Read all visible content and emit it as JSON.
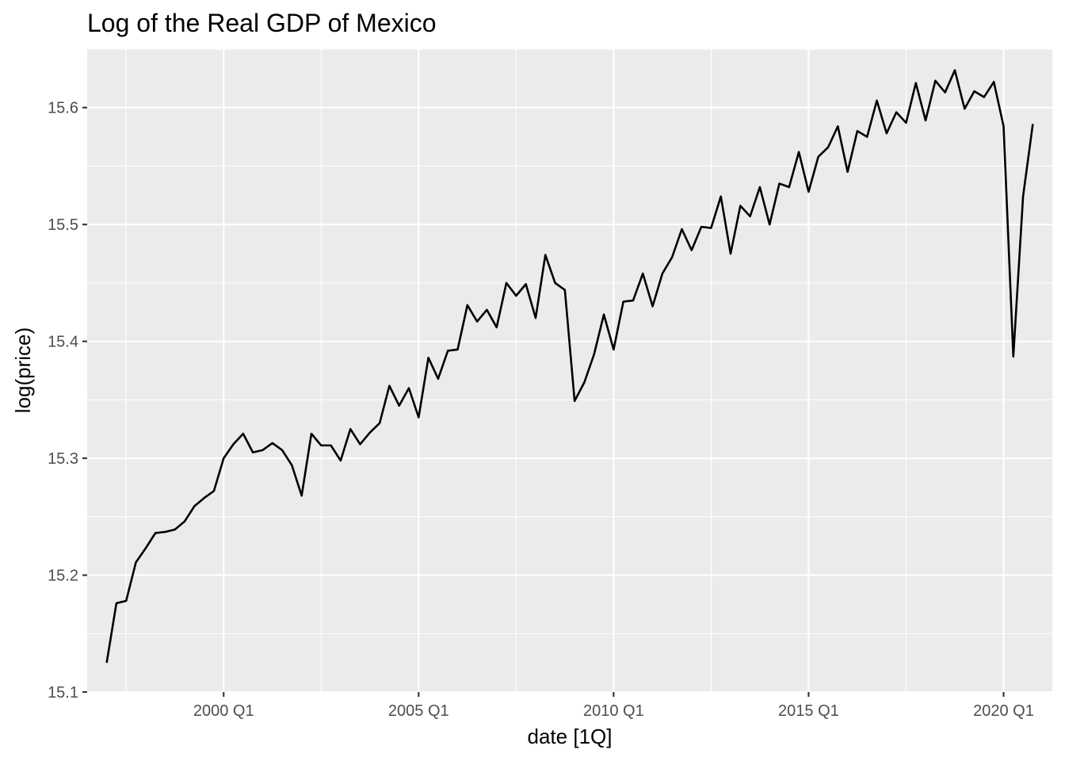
{
  "chart_data": {
    "type": "line",
    "title": "Log of the Real GDP of Mexico",
    "xlabel": "date [1Q]",
    "ylabel": "log(price)",
    "xlim": [
      "1996 Q3",
      "2021 Q2"
    ],
    "ylim": [
      15.1,
      15.65
    ],
    "y_ticks": [
      15.1,
      15.2,
      15.3,
      15.4,
      15.5,
      15.6
    ],
    "x_ticks": [
      "2000 Q1",
      "2005 Q1",
      "2010 Q1",
      "2015 Q1",
      "2020 Q1"
    ],
    "grid": true,
    "legend": "none",
    "background": "#ebebeb",
    "line_color": "#000000",
    "series": [
      {
        "start": "1997 Q1",
        "frequency": "quarterly",
        "values": [
          15.125,
          15.176,
          15.178,
          15.211,
          15.223,
          15.236,
          15.237,
          15.239,
          15.246,
          15.259,
          15.266,
          15.272,
          15.3,
          15.312,
          15.321,
          15.305,
          15.307,
          15.313,
          15.307,
          15.294,
          15.268,
          15.321,
          15.311,
          15.311,
          15.298,
          15.325,
          15.312,
          15.322,
          15.33,
          15.362,
          15.345,
          15.36,
          15.335,
          15.386,
          15.368,
          15.392,
          15.393,
          15.431,
          15.417,
          15.427,
          15.412,
          15.45,
          15.439,
          15.449,
          15.42,
          15.474,
          15.45,
          15.444,
          15.349,
          15.365,
          15.389,
          15.423,
          15.393,
          15.434,
          15.435,
          15.458,
          15.43,
          15.458,
          15.472,
          15.496,
          15.478,
          15.498,
          15.497,
          15.524,
          15.475,
          15.516,
          15.507,
          15.532,
          15.5,
          15.535,
          15.532,
          15.562,
          15.528,
          15.558,
          15.566,
          15.584,
          15.545,
          15.58,
          15.575,
          15.606,
          15.578,
          15.596,
          15.587,
          15.621,
          15.589,
          15.623,
          15.613,
          15.632,
          15.599,
          15.614,
          15.609,
          15.622,
          15.584,
          15.387,
          15.524,
          15.586
        ]
      }
    ]
  }
}
